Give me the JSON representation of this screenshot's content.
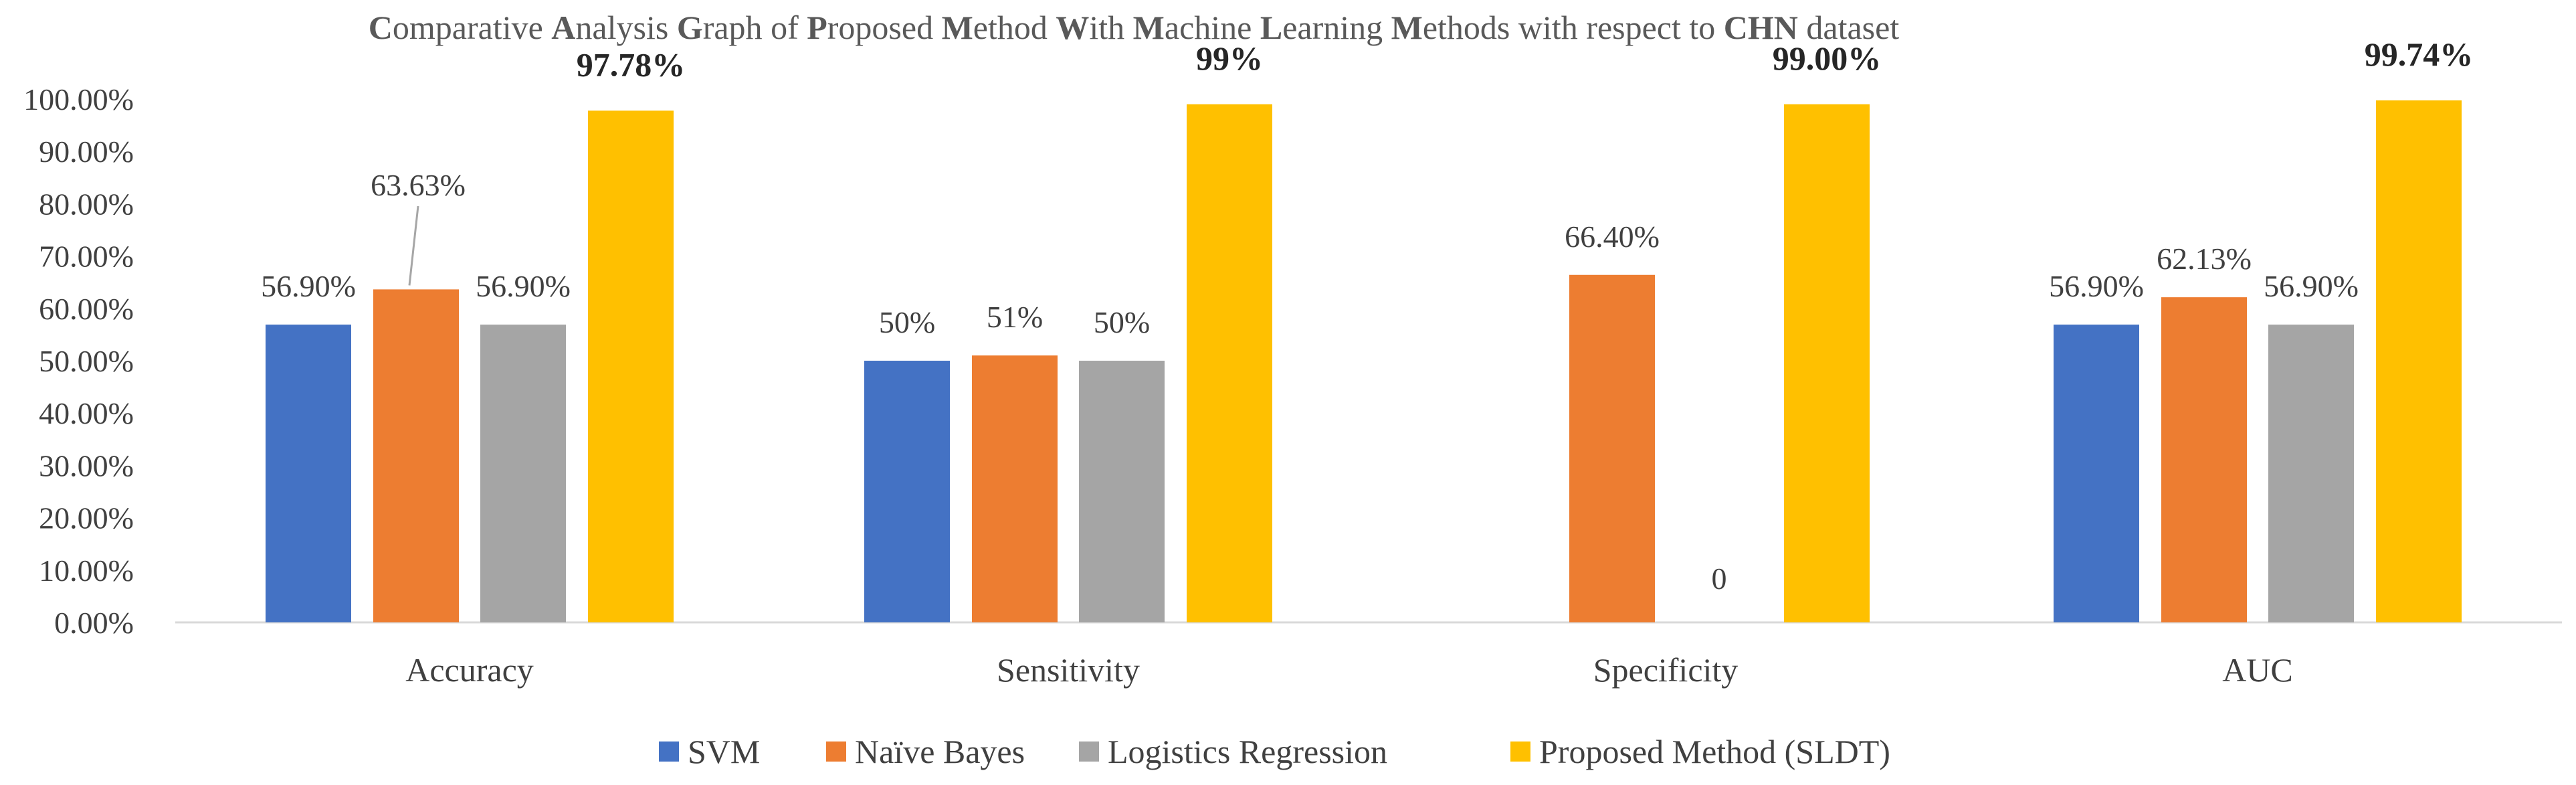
{
  "chart_data": {
    "type": "bar",
    "title": "Comparative Analysis Graph of Proposed Method With Machine Learning  Methods with respect to CHN dataset",
    "categories": [
      "Accuracy",
      "Sensitivity",
      "Specificity",
      "AUC"
    ],
    "ylim": [
      0,
      1
    ],
    "ytick_values": [
      0,
      0.1,
      0.2,
      0.3,
      0.4,
      0.5,
      0.6,
      0.7,
      0.8,
      0.9,
      1.0
    ],
    "ytick_labels": [
      "0.00%",
      "10.00%",
      "20.00%",
      "30.00%",
      "40.00%",
      "50.00%",
      "60.00%",
      "70.00%",
      "80.00%",
      "90.00%",
      "100.00%"
    ],
    "legend_position": "bottom",
    "grid": false,
    "series": [
      {
        "name": "SVM",
        "color": "#4472C4",
        "values": [
          0.569,
          0.5,
          null,
          0.569
        ],
        "labels": [
          "56.90%",
          "50%",
          "",
          "56.90%"
        ],
        "bold": false
      },
      {
        "name": "Naïve Bayes",
        "color": "#ED7D31",
        "values": [
          0.6363,
          0.51,
          0.664,
          0.6213
        ],
        "labels": [
          "63.63%",
          "51%",
          "66.40%",
          "62.13%"
        ],
        "bold": false
      },
      {
        "name": "Logistics Regression",
        "color": "#A5A5A5",
        "values": [
          0.569,
          0.5,
          0,
          0.569
        ],
        "labels": [
          "56.90%",
          "50%",
          "0",
          "56.90%"
        ],
        "bold": false
      },
      {
        "name": "Proposed Method (SLDT)",
        "color": "#FFC000",
        "values": [
          0.9778,
          0.99,
          0.99,
          0.9974
        ],
        "labels": [
          "97.78%",
          "99%",
          "99.00%",
          "99.74%"
        ],
        "bold": true
      }
    ]
  }
}
